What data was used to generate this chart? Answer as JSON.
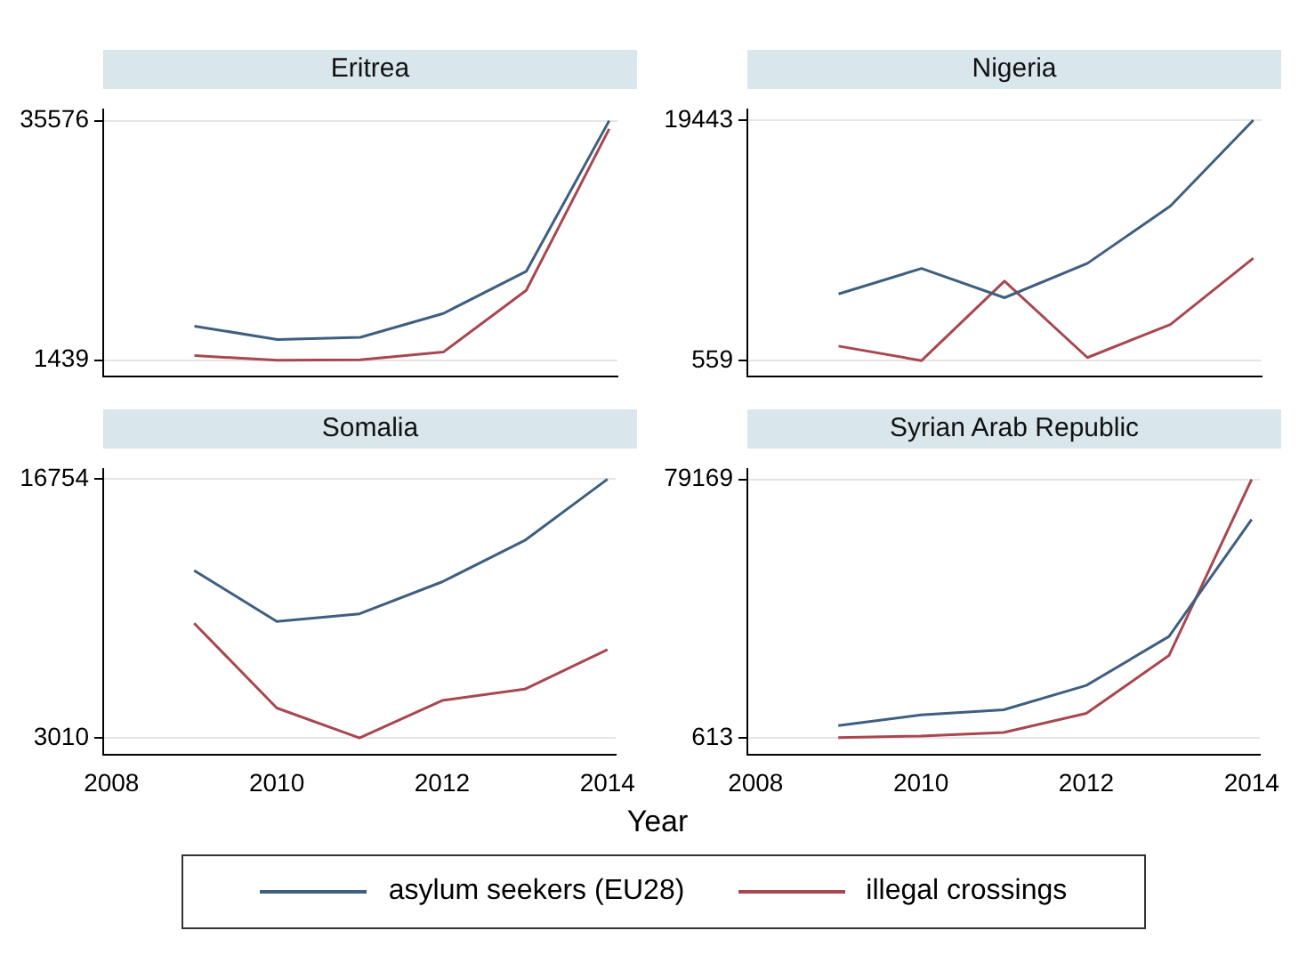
{
  "chart_data": [
    {
      "type": "line",
      "title": "Eritrea",
      "x": [
        2009,
        2010,
        2011,
        2012,
        2013,
        2014
      ],
      "xlim": [
        2007.9,
        2014.1
      ],
      "xticks": [
        2008,
        2010,
        2012,
        2014
      ],
      "ylim": [
        -900,
        37200
      ],
      "yticks": [
        1439,
        35576
      ],
      "tick_labels": "y",
      "grid": "y",
      "series": [
        {
          "color": "#3e5f80",
          "values": [
            6300,
            4400,
            4700,
            8100,
            14100,
            35576
          ]
        },
        {
          "color": "#a8474f",
          "values": [
            2100,
            1439,
            1500,
            2600,
            11400,
            34400
          ]
        }
      ]
    },
    {
      "type": "line",
      "title": "Nigeria",
      "x": [
        2009,
        2010,
        2011,
        2012,
        2013,
        2014
      ],
      "xlim": [
        2007.9,
        2014.1
      ],
      "xticks": [
        2008,
        2010,
        2012,
        2014
      ],
      "ylim": [
        -700,
        20300
      ],
      "yticks": [
        559,
        19443
      ],
      "tick_labels": "y",
      "grid": "y",
      "series": [
        {
          "color": "#3e5f80",
          "values": [
            5800,
            7800,
            5500,
            8200,
            12700,
            19443
          ]
        },
        {
          "color": "#a8474f",
          "values": [
            1700,
            559,
            6800,
            800,
            3400,
            8600
          ]
        }
      ]
    },
    {
      "type": "line",
      "title": "Somalia",
      "x": [
        2009,
        2010,
        2011,
        2012,
        2013,
        2014
      ],
      "xlim": [
        2007.9,
        2014.1
      ],
      "xticks": [
        2008,
        2010,
        2012,
        2014
      ],
      "ylim": [
        2100,
        17300
      ],
      "yticks": [
        3010,
        16754
      ],
      "grid": "y",
      "series": [
        {
          "color": "#3e5f80",
          "values": [
            11900,
            9200,
            9600,
            11300,
            13500,
            16754
          ]
        },
        {
          "color": "#a8474f",
          "values": [
            9100,
            4600,
            3010,
            5000,
            5600,
            7700
          ]
        }
      ]
    },
    {
      "type": "line",
      "title": "Syrian Arab Republic",
      "x": [
        2009,
        2010,
        2011,
        2012,
        2013,
        2014
      ],
      "xlim": [
        2007.9,
        2014.1
      ],
      "xticks": [
        2008,
        2010,
        2012,
        2014
      ],
      "ylim": [
        -4700,
        82400
      ],
      "yticks": [
        613,
        79169
      ],
      "grid": "y",
      "xlabel": "Year",
      "legend": "bottom",
      "series": [
        {
          "name": "asylum seekers (EU28)",
          "color": "#3e5f80",
          "values": [
            4300,
            7500,
            9100,
            16500,
            31400,
            67000
          ]
        },
        {
          "name": "illegal crossings",
          "color": "#a8474f",
          "values": [
            613,
            1100,
            2200,
            8000,
            25600,
            79169
          ]
        }
      ]
    }
  ]
}
